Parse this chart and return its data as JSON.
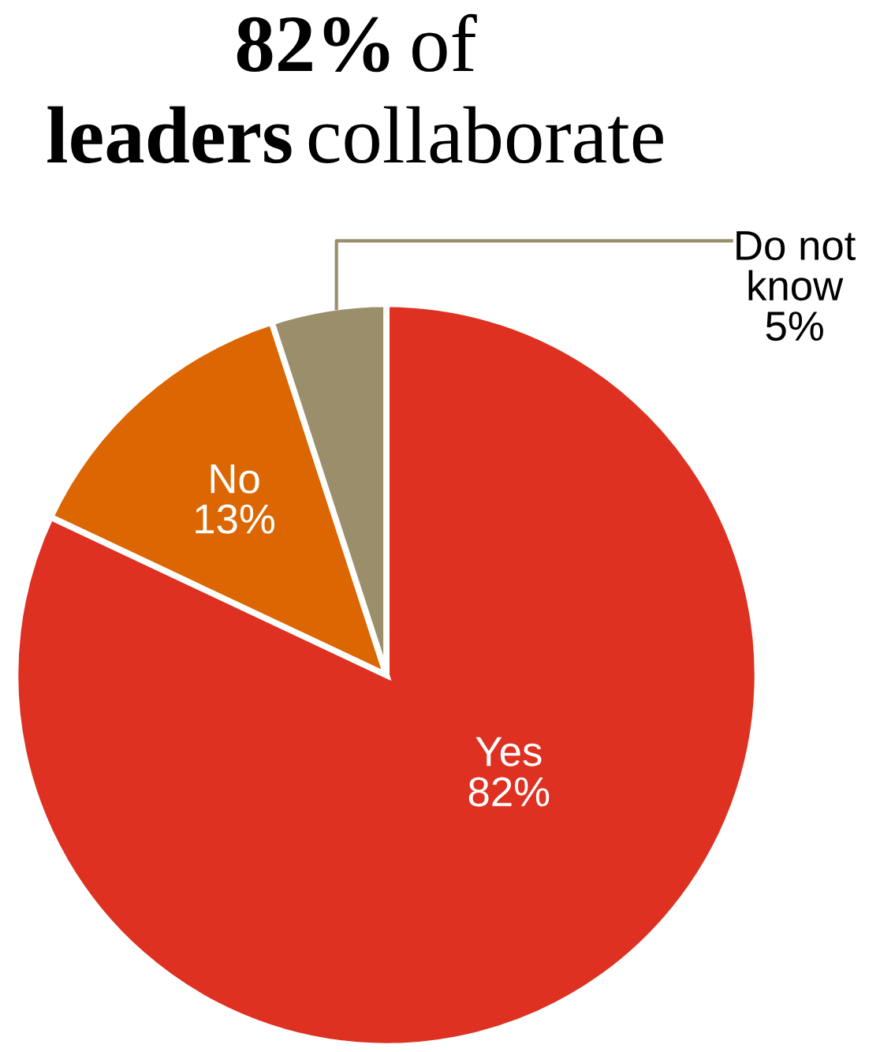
{
  "chart_data": {
    "type": "pie",
    "title": "82% of\nleaders collaborate",
    "categories": [
      "Yes",
      "No",
      "Do not know"
    ],
    "values": [
      82,
      13,
      5
    ],
    "value_labels": [
      "82%",
      "13%",
      "5%"
    ],
    "colors": [
      "#de3121",
      "#dc6601",
      "#9b8e6b"
    ],
    "legend": false
  }
}
